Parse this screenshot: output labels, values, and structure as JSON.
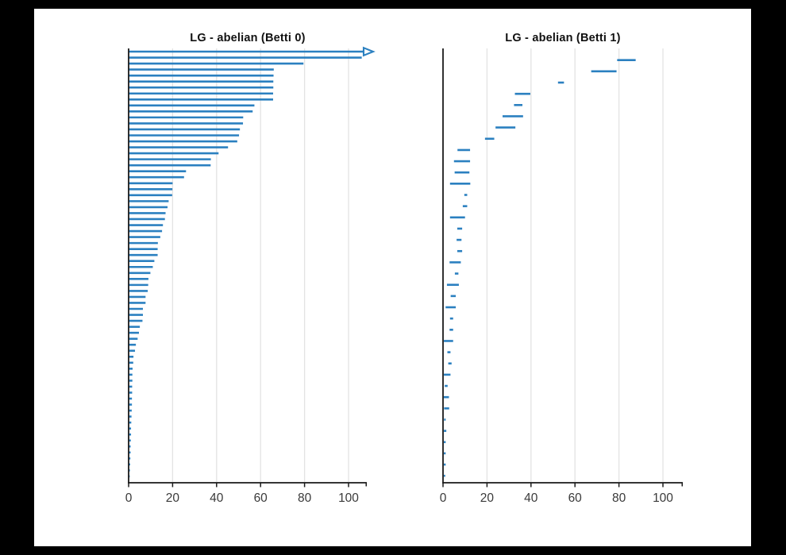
{
  "figure": {
    "background": "#000000",
    "canvas_background": "#ffffff",
    "axis_color": "#1a1a1a",
    "grid_color": "#e3e3e3",
    "tick_label_color": "#3a3a3a",
    "bar_color": "#2b80c0"
  },
  "chart_data": [
    {
      "type": "bar",
      "subtype": "persistence-barcode",
      "title": "LG - abelian (Betti 0)",
      "xlabel": "",
      "ylabel": "",
      "xlim": [
        0,
        108
      ],
      "xticks": [
        0,
        20,
        40,
        60,
        80,
        100
      ],
      "grid": true,
      "legend": null,
      "first_bar_infinite": true,
      "bars": [
        [
          0,
          107
        ],
        [
          0,
          106
        ],
        [
          0,
          79.5
        ],
        [
          0,
          66
        ],
        [
          0,
          65.9
        ],
        [
          0,
          65.8
        ],
        [
          0,
          65.8
        ],
        [
          0,
          65.7
        ],
        [
          0,
          65.7
        ],
        [
          0,
          57.2
        ],
        [
          0,
          56.4
        ],
        [
          0,
          52.1
        ],
        [
          0,
          52
        ],
        [
          0,
          50.6
        ],
        [
          0,
          50.2
        ],
        [
          0,
          49.4
        ],
        [
          0,
          45.2
        ],
        [
          0,
          40.9
        ],
        [
          0,
          37.4
        ],
        [
          0,
          37.3
        ],
        [
          0,
          26.1
        ],
        [
          0,
          25.2
        ],
        [
          0,
          20
        ],
        [
          0,
          19.9
        ],
        [
          0,
          19.8
        ],
        [
          0,
          18.2
        ],
        [
          0,
          17.7
        ],
        [
          0,
          16.8
        ],
        [
          0,
          16.5
        ],
        [
          0,
          15.6
        ],
        [
          0,
          15.2
        ],
        [
          0,
          14.4
        ],
        [
          0,
          13.3
        ],
        [
          0,
          13.2
        ],
        [
          0,
          13.2
        ],
        [
          0,
          11.7
        ],
        [
          0,
          11
        ],
        [
          0,
          9.9
        ],
        [
          0,
          9
        ],
        [
          0,
          8.9
        ],
        [
          0,
          8.7
        ],
        [
          0,
          7.7
        ],
        [
          0,
          7.7
        ],
        [
          0,
          6.5
        ],
        [
          0,
          6.5
        ],
        [
          0,
          6.3
        ],
        [
          0,
          5.1
        ],
        [
          0,
          4.7
        ],
        [
          0,
          4.1
        ],
        [
          0,
          3.3
        ],
        [
          0,
          2.9
        ],
        [
          0,
          2.2
        ],
        [
          0,
          2.1
        ],
        [
          0,
          1.8
        ],
        [
          0,
          1.7
        ],
        [
          0,
          1.7
        ],
        [
          0,
          1.6
        ],
        [
          0,
          1.6
        ],
        [
          0,
          1.5
        ],
        [
          0,
          1.5
        ],
        [
          0,
          1.4
        ],
        [
          0,
          1.3
        ],
        [
          0,
          1.2
        ],
        [
          0,
          1.1
        ],
        [
          0,
          1.1
        ],
        [
          0,
          1
        ],
        [
          0,
          0.9
        ],
        [
          0,
          0.9
        ],
        [
          0,
          0.8
        ],
        [
          0,
          0.7
        ],
        [
          0,
          0.6
        ],
        [
          0,
          0.5
        ]
      ]
    },
    {
      "type": "bar",
      "subtype": "persistence-barcode",
      "title": "LG - abelian (Betti 1)",
      "xlabel": "",
      "ylabel": "",
      "xlim": [
        0,
        108
      ],
      "xticks": [
        0,
        20,
        40,
        60,
        80,
        100
      ],
      "grid": true,
      "legend": null,
      "first_bar_infinite": false,
      "bars": [
        [
          79,
          87.6
        ],
        [
          67.2,
          78.9
        ],
        [
          52.1,
          55
        ],
        [
          32.5,
          39.7
        ],
        [
          32.1,
          36.1
        ],
        [
          26.9,
          36.4
        ],
        [
          23.7,
          32.9
        ],
        [
          18.9,
          23.3
        ],
        [
          6.4,
          12.3
        ],
        [
          4.8,
          12.3
        ],
        [
          5.1,
          12
        ],
        [
          3,
          12.4
        ],
        [
          9.5,
          11
        ],
        [
          8.8,
          11
        ],
        [
          3,
          10
        ],
        [
          6.3,
          8.7
        ],
        [
          6,
          8.4
        ],
        [
          6.3,
          8.7
        ],
        [
          2.8,
          8.1
        ],
        [
          5.2,
          7
        ],
        [
          1.6,
          7.2
        ],
        [
          3.3,
          5.8
        ],
        [
          1,
          5.8
        ],
        [
          3,
          4.6
        ],
        [
          2.8,
          4.6
        ],
        [
          0.2,
          4.6
        ],
        [
          1.8,
          3.4
        ],
        [
          2.2,
          3.9
        ],
        [
          0.2,
          3.4
        ],
        [
          0.6,
          2.1
        ],
        [
          0.1,
          2.7
        ],
        [
          0.3,
          2.8
        ],
        [
          0.3,
          1.2
        ],
        [
          0.2,
          1.5
        ],
        [
          0.2,
          1.2
        ],
        [
          0.2,
          1.2
        ],
        [
          0.2,
          1.2
        ],
        [
          0.2,
          1
        ]
      ]
    }
  ]
}
